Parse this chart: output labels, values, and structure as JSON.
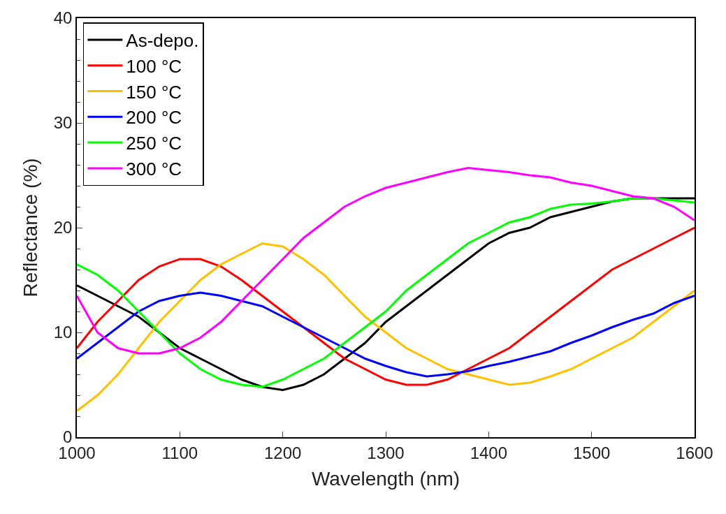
{
  "chart_data": {
    "type": "line",
    "xlabel": "Wavelength (nm)",
    "ylabel": "Reflectance (%)",
    "x": [
      1000,
      1020,
      1040,
      1060,
      1080,
      1100,
      1120,
      1140,
      1160,
      1180,
      1200,
      1220,
      1240,
      1260,
      1280,
      1300,
      1320,
      1340,
      1360,
      1380,
      1400,
      1420,
      1440,
      1460,
      1480,
      1500,
      1520,
      1540,
      1560,
      1580,
      1600
    ],
    "series": [
      {
        "name": "As-depo.",
        "color": "#000000",
        "values": [
          14.5,
          13.5,
          12.5,
          11.5,
          10,
          8.5,
          7.5,
          6.5,
          5.5,
          4.8,
          4.5,
          5,
          6,
          7.5,
          9,
          11,
          12.5,
          14,
          15.5,
          17,
          18.5,
          19.5,
          20,
          21,
          21.5,
          22,
          22.5,
          22.8,
          22.8,
          22.8,
          22.8
        ]
      },
      {
        "name": "100 °C",
        "color": "#ff0000",
        "values": [
          8.5,
          11,
          13,
          15,
          16.3,
          17,
          17,
          16.3,
          15,
          13.5,
          12,
          10.5,
          9,
          7.5,
          6.5,
          5.5,
          5,
          5,
          5.5,
          6.5,
          7.5,
          8.5,
          10,
          11.5,
          13,
          14.5,
          16,
          17,
          18,
          19,
          20
        ]
      },
      {
        "name": "150 °C",
        "color": "#ffc000",
        "values": [
          2.5,
          4,
          6,
          8.5,
          11,
          13,
          15,
          16.5,
          17.5,
          18.5,
          18.2,
          17,
          15.5,
          13.5,
          11.5,
          10,
          8.5,
          7.5,
          6.5,
          6,
          5.5,
          5,
          5.2,
          5.8,
          6.5,
          7.5,
          8.5,
          9.5,
          11,
          12.5,
          14
        ]
      },
      {
        "name": "200 °C",
        "color": "#0000ff",
        "values": [
          7.5,
          9,
          10.5,
          12,
          13,
          13.5,
          13.8,
          13.5,
          13,
          12.5,
          11.5,
          10.5,
          9.5,
          8.5,
          7.5,
          6.8,
          6.2,
          5.8,
          6,
          6.3,
          6.8,
          7.2,
          7.7,
          8.2,
          9,
          9.7,
          10.5,
          11.2,
          11.8,
          12.8,
          13.5
        ]
      },
      {
        "name": "250 °C",
        "color": "#00ff00",
        "values": [
          16.5,
          15.5,
          14,
          12,
          10,
          8,
          6.5,
          5.5,
          5,
          4.8,
          5.5,
          6.5,
          7.5,
          9,
          10.5,
          12,
          14,
          15.5,
          17,
          18.5,
          19.5,
          20.5,
          21,
          21.8,
          22.2,
          22.3,
          22.5,
          22.8,
          22.8,
          22.6,
          22.4
        ]
      },
      {
        "name": "300 °C",
        "color": "#ff00ff",
        "values": [
          13.5,
          10,
          8.5,
          8,
          8,
          8.5,
          9.5,
          11,
          13,
          15,
          17,
          19,
          20.5,
          22,
          23,
          23.8,
          24.3,
          24.8,
          25.3,
          25.7,
          25.5,
          25.3,
          25,
          24.8,
          24.3,
          24,
          23.5,
          23,
          22.8,
          22,
          20.7
        ]
      }
    ],
    "xlim": [
      1000,
      1600
    ],
    "xticks": [
      1000,
      1100,
      1200,
      1300,
      1400,
      1500,
      1600
    ],
    "ylim": [
      0,
      40
    ],
    "yticks": [
      0,
      10,
      20,
      30,
      40
    ],
    "legend": "top left",
    "marker": "none",
    "line_style": "solid"
  }
}
